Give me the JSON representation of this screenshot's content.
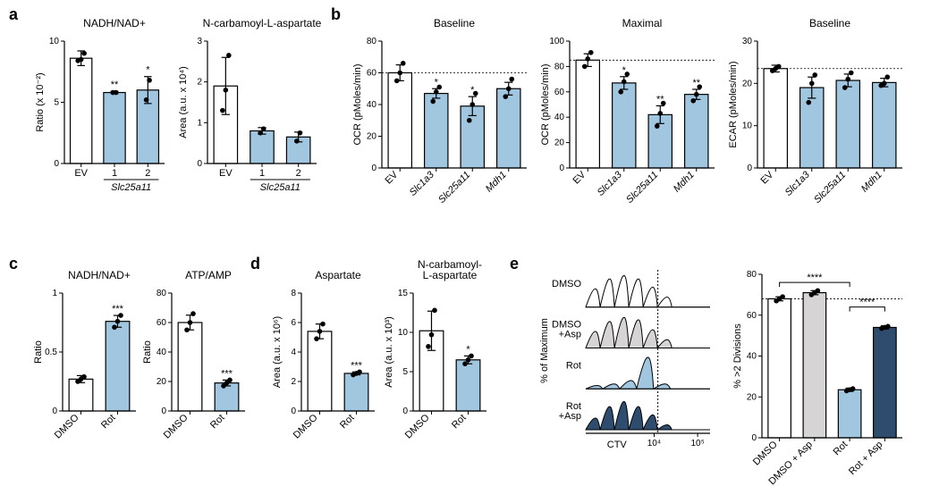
{
  "colors": {
    "bar_blue": "#a0c6e0",
    "bar_white": "#ffffff",
    "bar_gray": "#d6d4d4",
    "bar_darkblue": "#2e4c6e",
    "stroke": "#000000",
    "grid": "#000000"
  },
  "panels": {
    "a": {
      "label": "a",
      "chart1": {
        "title": "NADH/NAD+",
        "ylabel": "Ratio (x 10⁻²)",
        "ylim": [
          0,
          10
        ],
        "ytick_step": 5,
        "categories": [
          "EV",
          "1",
          "2"
        ],
        "group_label": "Slc25a11",
        "values": [
          8.6,
          5.8,
          6.0
        ],
        "errors": [
          0.6,
          0.1,
          1.1
        ],
        "colors": [
          "#ffffff",
          "#a0c6e0",
          "#a0c6e0"
        ],
        "points": [
          [
            8.4,
            8.5,
            9.0
          ],
          [
            5.8,
            5.8
          ],
          [
            5.2,
            6.8
          ]
        ],
        "sigs": [
          "",
          "**",
          "*"
        ]
      },
      "chart2": {
        "title": "N-carbamoyl-L-aspartate",
        "ylabel": "Area (a.u. x 10⁴)",
        "ylim": [
          0,
          3
        ],
        "ytick_step": 1,
        "categories": [
          "EV",
          "1",
          "2"
        ],
        "group_label": "Slc25a11",
        "values": [
          1.9,
          0.8,
          0.65
        ],
        "errors": [
          0.7,
          0.08,
          0.12
        ],
        "colors": [
          "#ffffff",
          "#a0c6e0",
          "#a0c6e0"
        ],
        "points": [
          [
            1.3,
            1.8,
            2.65
          ],
          [
            0.75,
            0.85
          ],
          [
            0.55,
            0.75
          ]
        ],
        "sigs": [
          "",
          "",
          ""
        ]
      }
    },
    "b": {
      "label": "b",
      "chart1": {
        "title": "Baseline",
        "ylabel": "OCR (pMoles/min)",
        "ylim": [
          0,
          80
        ],
        "ytick_step": 20,
        "categories": [
          "EV",
          "Slc1a3",
          "Slc25a11",
          "Mdh1"
        ],
        "italic": [
          false,
          true,
          true,
          true
        ],
        "values": [
          60,
          47,
          39,
          50
        ],
        "errors": [
          5,
          3,
          6,
          4
        ],
        "colors": [
          "#ffffff",
          "#a0c6e0",
          "#a0c6e0",
          "#a0c6e0"
        ],
        "points": [
          [
            55,
            60,
            66
          ],
          [
            42,
            48,
            51
          ],
          [
            30,
            40,
            47
          ],
          [
            45,
            50,
            56
          ]
        ],
        "sigs": [
          "",
          "*",
          "*",
          ""
        ],
        "ref_line": 60
      },
      "chart2": {
        "title": "Maximal",
        "ylabel": "OCR (pMoles/min)",
        "ylim": [
          0,
          100
        ],
        "ytick_step": 20,
        "categories": [
          "EV",
          "Slc1a3",
          "Slc25a11",
          "Mdh1"
        ],
        "italic": [
          false,
          true,
          true,
          true
        ],
        "values": [
          85,
          67,
          42,
          58
        ],
        "errors": [
          5,
          5,
          7,
          4
        ],
        "colors": [
          "#ffffff",
          "#a0c6e0",
          "#a0c6e0",
          "#a0c6e0"
        ],
        "points": [
          [
            80,
            86,
            91
          ],
          [
            60,
            68,
            74
          ],
          [
            33,
            43,
            51
          ],
          [
            53,
            58,
            64
          ]
        ],
        "sigs": [
          "",
          "*",
          "**",
          "**"
        ],
        "ref_line": 85
      },
      "chart3": {
        "title": "Baseline",
        "ylabel": "ECAR (pMoles/min)",
        "ylim": [
          0,
          30
        ],
        "ytick_step": 10,
        "categories": [
          "EV",
          "Slc1a3",
          "Slc25a11",
          "Mdh1"
        ],
        "italic": [
          false,
          true,
          true,
          true
        ],
        "values": [
          23.5,
          19,
          20.7,
          20.2
        ],
        "errors": [
          0.8,
          2.5,
          1.5,
          1.0
        ],
        "colors": [
          "#ffffff",
          "#a0c6e0",
          "#a0c6e0",
          "#a0c6e0"
        ],
        "points": [
          [
            23,
            23.5,
            24
          ],
          [
            15.5,
            20,
            22
          ],
          [
            19,
            21,
            22.5
          ],
          [
            19.5,
            20,
            21.5
          ]
        ],
        "sigs": [
          "",
          "",
          "",
          ""
        ],
        "ref_line": 23.5
      }
    },
    "c": {
      "label": "c",
      "chart1": {
        "title": "NADH/NAD+",
        "ylabel": "Ratio",
        "ylim": [
          0,
          1.0
        ],
        "ytick_step": 0.5,
        "categories": [
          "DMSO",
          "Rot"
        ],
        "values": [
          0.27,
          0.76
        ],
        "errors": [
          0.03,
          0.05
        ],
        "colors": [
          "#ffffff",
          "#a0c6e0"
        ],
        "points": [
          [
            0.25,
            0.27,
            0.29
          ],
          [
            0.71,
            0.76,
            0.81
          ]
        ],
        "sigs": [
          "",
          "***"
        ]
      },
      "chart2": {
        "title": "ATP/AMP",
        "ylabel": "Ratio",
        "ylim": [
          0,
          80
        ],
        "ytick_step": 20,
        "categories": [
          "DMSO",
          "Rot"
        ],
        "values": [
          60,
          19
        ],
        "errors": [
          5,
          2
        ],
        "colors": [
          "#ffffff",
          "#a0c6e0"
        ],
        "points": [
          [
            55,
            60,
            66
          ],
          [
            17,
            19,
            21
          ]
        ],
        "sigs": [
          "",
          "***"
        ]
      }
    },
    "d": {
      "label": "d",
      "chart1": {
        "title": "Aspartate",
        "ylabel": "Area (a.u. x 10⁶)",
        "ylim": [
          0,
          8
        ],
        "ytick_step": 2,
        "categories": [
          "DMSO",
          "Rot"
        ],
        "values": [
          5.4,
          2.55
        ],
        "errors": [
          0.5,
          0.1
        ],
        "colors": [
          "#ffffff",
          "#a0c6e0"
        ],
        "points": [
          [
            4.9,
            5.4,
            5.9
          ],
          [
            2.45,
            2.55,
            2.65
          ]
        ],
        "sigs": [
          "",
          "***"
        ]
      },
      "chart2": {
        "title": "N-carbamoyl-\nL-aspartate",
        "ylabel": "Area (a.u. x 10³)",
        "ylim": [
          0,
          15
        ],
        "ytick_step": 5,
        "categories": [
          "DMSO",
          "Rot"
        ],
        "values": [
          10.2,
          6.5
        ],
        "errors": [
          2.5,
          0.5
        ],
        "colors": [
          "#ffffff",
          "#a0c6e0"
        ],
        "points": [
          [
            8.2,
            9.7,
            12.8
          ],
          [
            6.0,
            6.5,
            7.0
          ]
        ],
        "sigs": [
          "",
          "*"
        ]
      }
    },
    "e": {
      "label": "e",
      "flow": {
        "ylabel": "% of Maximum",
        "xlabel": "CTV",
        "conditions": [
          "DMSO",
          "DMSO\n+Asp",
          "Rot",
          "Rot\n+Asp"
        ],
        "colors": [
          "#ffffff",
          "#d6d4d4",
          "#a0c6e0",
          "#2e4c6e"
        ],
        "xticks": [
          "10⁴",
          "10⁵"
        ]
      },
      "chart": {
        "ylabel": "% >2 Divisions",
        "ylim": [
          0,
          80
        ],
        "ytick_step": 20,
        "categories": [
          "DMSO",
          "DMSO + Asp",
          "Rot",
          "Rot + Asp"
        ],
        "values": [
          68,
          71,
          23.5,
          54
        ],
        "errors": [
          1,
          1,
          0.8,
          0.8
        ],
        "colors": [
          "#ffffff",
          "#d6d4d4",
          "#a0c6e0",
          "#2e4c6e"
        ],
        "points": [
          [
            67,
            68,
            69
          ],
          [
            70,
            71,
            72
          ],
          [
            23,
            23.5,
            24
          ],
          [
            53.5,
            54,
            54.5
          ]
        ],
        "sigs": [],
        "ref_line": 68,
        "brackets": [
          {
            "from": 0,
            "to": 2,
            "label": "****",
            "y": 76
          },
          {
            "from": 2,
            "to": 3,
            "label": "****",
            "y": 64
          }
        ]
      }
    }
  }
}
